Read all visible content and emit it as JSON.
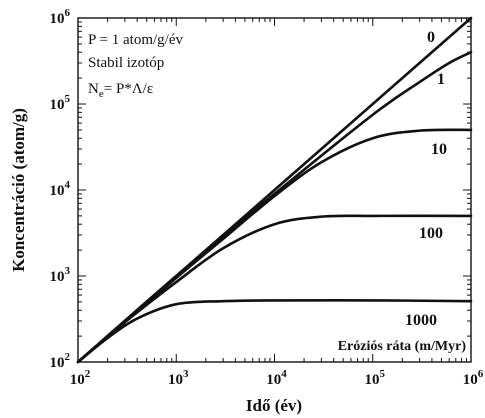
{
  "chart_data": {
    "type": "line",
    "xlabel": "Idő (év)",
    "ylabel": "Koncentráció (atom/g)",
    "x_scale": "log",
    "y_scale": "log",
    "xlim": [
      100,
      1000000
    ],
    "ylim": [
      100,
      1000000
    ],
    "x_ticks": [
      {
        "value": 100,
        "base": "10",
        "exp": "2"
      },
      {
        "value": 1000,
        "base": "10",
        "exp": "3"
      },
      {
        "value": 10000,
        "base": "10",
        "exp": "4"
      },
      {
        "value": 100000,
        "base": "10",
        "exp": "5"
      },
      {
        "value": 1000000,
        "base": "10",
        "exp": "6"
      }
    ],
    "y_ticks": [
      {
        "value": 100,
        "base": "10",
        "exp": "2"
      },
      {
        "value": 1000,
        "base": "10",
        "exp": "3"
      },
      {
        "value": 10000,
        "base": "10",
        "exp": "4"
      },
      {
        "value": 100000,
        "base": "10",
        "exp": "5"
      },
      {
        "value": 1000000,
        "base": "10",
        "exp": "6"
      }
    ],
    "grid": false,
    "annotations": {
      "line1": "P = 1 atom/g/év",
      "line2": "Stabil izotóp",
      "eq_prefix": "N",
      "eq_sub": "e",
      "eq_rest": "= P*Λ/ε",
      "legend_title": "Eróziós ráta (m/Myr)"
    },
    "series": [
      {
        "label": "0",
        "x": [
          100,
          1000,
          10000,
          100000,
          1000000
        ],
        "y": [
          100,
          1000,
          10000,
          100000,
          1000000
        ]
      },
      {
        "label": "1",
        "x": [
          100,
          1000,
          10000,
          100000,
          300000,
          600000,
          1000000
        ],
        "y": [
          100,
          1000,
          9000,
          75000,
          180000,
          300000,
          400000
        ]
      },
      {
        "label": "10",
        "x": [
          100,
          1000,
          3000,
          10000,
          30000,
          100000,
          300000,
          1000000
        ],
        "y": [
          100,
          950,
          2700,
          8500,
          21000,
          40000,
          49000,
          50000
        ]
      },
      {
        "label": "100",
        "x": [
          100,
          300,
          1000,
          3000,
          10000,
          30000,
          100000,
          1000000
        ],
        "y": [
          100,
          290,
          850,
          2100,
          4000,
          4900,
          5000,
          5000
        ]
      },
      {
        "label": "1000",
        "x": [
          100,
          200,
          400,
          1000,
          3000,
          10000,
          100000,
          1000000
        ],
        "y": [
          100,
          190,
          320,
          470,
          510,
          520,
          520,
          510
        ]
      }
    ]
  }
}
